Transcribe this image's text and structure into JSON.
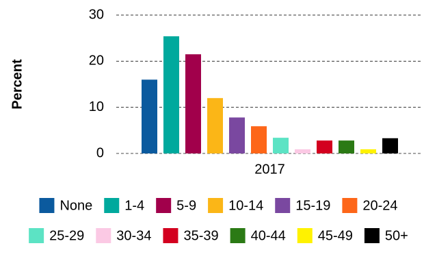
{
  "chart_data": {
    "type": "bar",
    "y_label": "Percent",
    "categories": [
      "2017"
    ],
    "series": [
      {
        "name": "None",
        "color": "#0b5a9e",
        "values": [
          16
        ]
      },
      {
        "name": "1-4",
        "color": "#00a99d",
        "values": [
          25.4
        ]
      },
      {
        "name": "5-9",
        "color": "#a1004b",
        "values": [
          21.5
        ]
      },
      {
        "name": "10-14",
        "color": "#fbb617",
        "values": [
          12
        ]
      },
      {
        "name": "15-19",
        "color": "#7a48a0",
        "values": [
          7.8
        ]
      },
      {
        "name": "20-24",
        "color": "#fd6619",
        "values": [
          5.9
        ]
      },
      {
        "name": "25-29",
        "color": "#5ce3c4",
        "values": [
          3.4
        ]
      },
      {
        "name": "30-34",
        "color": "#fbc9e4",
        "values": [
          0.9
        ]
      },
      {
        "name": "35-39",
        "color": "#d3001f",
        "values": [
          2.8
        ]
      },
      {
        "name": "40-44",
        "color": "#2b7a15",
        "values": [
          2.8
        ]
      },
      {
        "name": "45-49",
        "color": "#fff200",
        "values": [
          0.9
        ]
      },
      {
        "name": "50+",
        "color": "#000000",
        "values": [
          3.3
        ]
      }
    ],
    "ylim": [
      0,
      30
    ],
    "yticks": [
      0,
      10,
      20,
      30
    ],
    "grid": true,
    "legend": "bottom"
  }
}
